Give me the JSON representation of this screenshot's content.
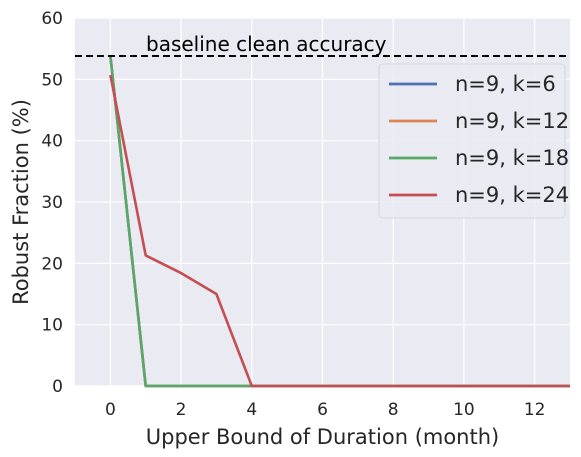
{
  "chart_data": {
    "type": "line",
    "title": "",
    "xlabel": "Upper Bound of Duration (month)",
    "ylabel": "Robust Fraction (%)",
    "xlim": [
      -1,
      13
    ],
    "ylim": [
      0,
      60
    ],
    "xticks": [
      0,
      2,
      4,
      6,
      8,
      10,
      12
    ],
    "yticks": [
      0,
      10,
      20,
      30,
      40,
      50,
      60
    ],
    "grid": true,
    "background": "#eaeaf2",
    "legend_position": "top-right",
    "baseline": {
      "label": "baseline clean accuracy",
      "value": 53.8,
      "color": "#000000",
      "style": "dashed"
    },
    "series": [
      {
        "name": "n=9, k=6",
        "color": "#4c72b0",
        "x": [
          0,
          1,
          2,
          3,
          4,
          5,
          6,
          7,
          8,
          9,
          10,
          11,
          12,
          13
        ],
        "y": [
          53.8,
          0,
          0,
          0,
          0,
          0,
          0,
          0,
          0,
          0,
          0,
          0,
          0,
          0
        ]
      },
      {
        "name": "n=9, k=12",
        "color": "#dd8452",
        "x": [
          0,
          1,
          2,
          3,
          4,
          5,
          6,
          7,
          8,
          9,
          10,
          11,
          12,
          13
        ],
        "y": [
          53.8,
          0,
          0,
          0,
          0,
          0,
          0,
          0,
          0,
          0,
          0,
          0,
          0,
          0
        ]
      },
      {
        "name": "n=9, k=18",
        "color": "#55a868",
        "x": [
          0,
          1,
          2,
          3,
          4,
          5,
          6,
          7,
          8,
          9,
          10,
          11,
          12,
          13
        ],
        "y": [
          53.8,
          0,
          0,
          0,
          0,
          0,
          0,
          0,
          0,
          0,
          0,
          0,
          0,
          0
        ]
      },
      {
        "name": "n=9, k=24",
        "color": "#c44e52",
        "x": [
          0,
          1,
          2,
          3,
          4,
          5,
          6,
          7,
          8,
          9,
          10,
          11,
          12,
          13
        ],
        "y": [
          50.7,
          21.3,
          18.4,
          15.0,
          0,
          0,
          0,
          0,
          0,
          0,
          0,
          0,
          0,
          0
        ]
      }
    ]
  }
}
